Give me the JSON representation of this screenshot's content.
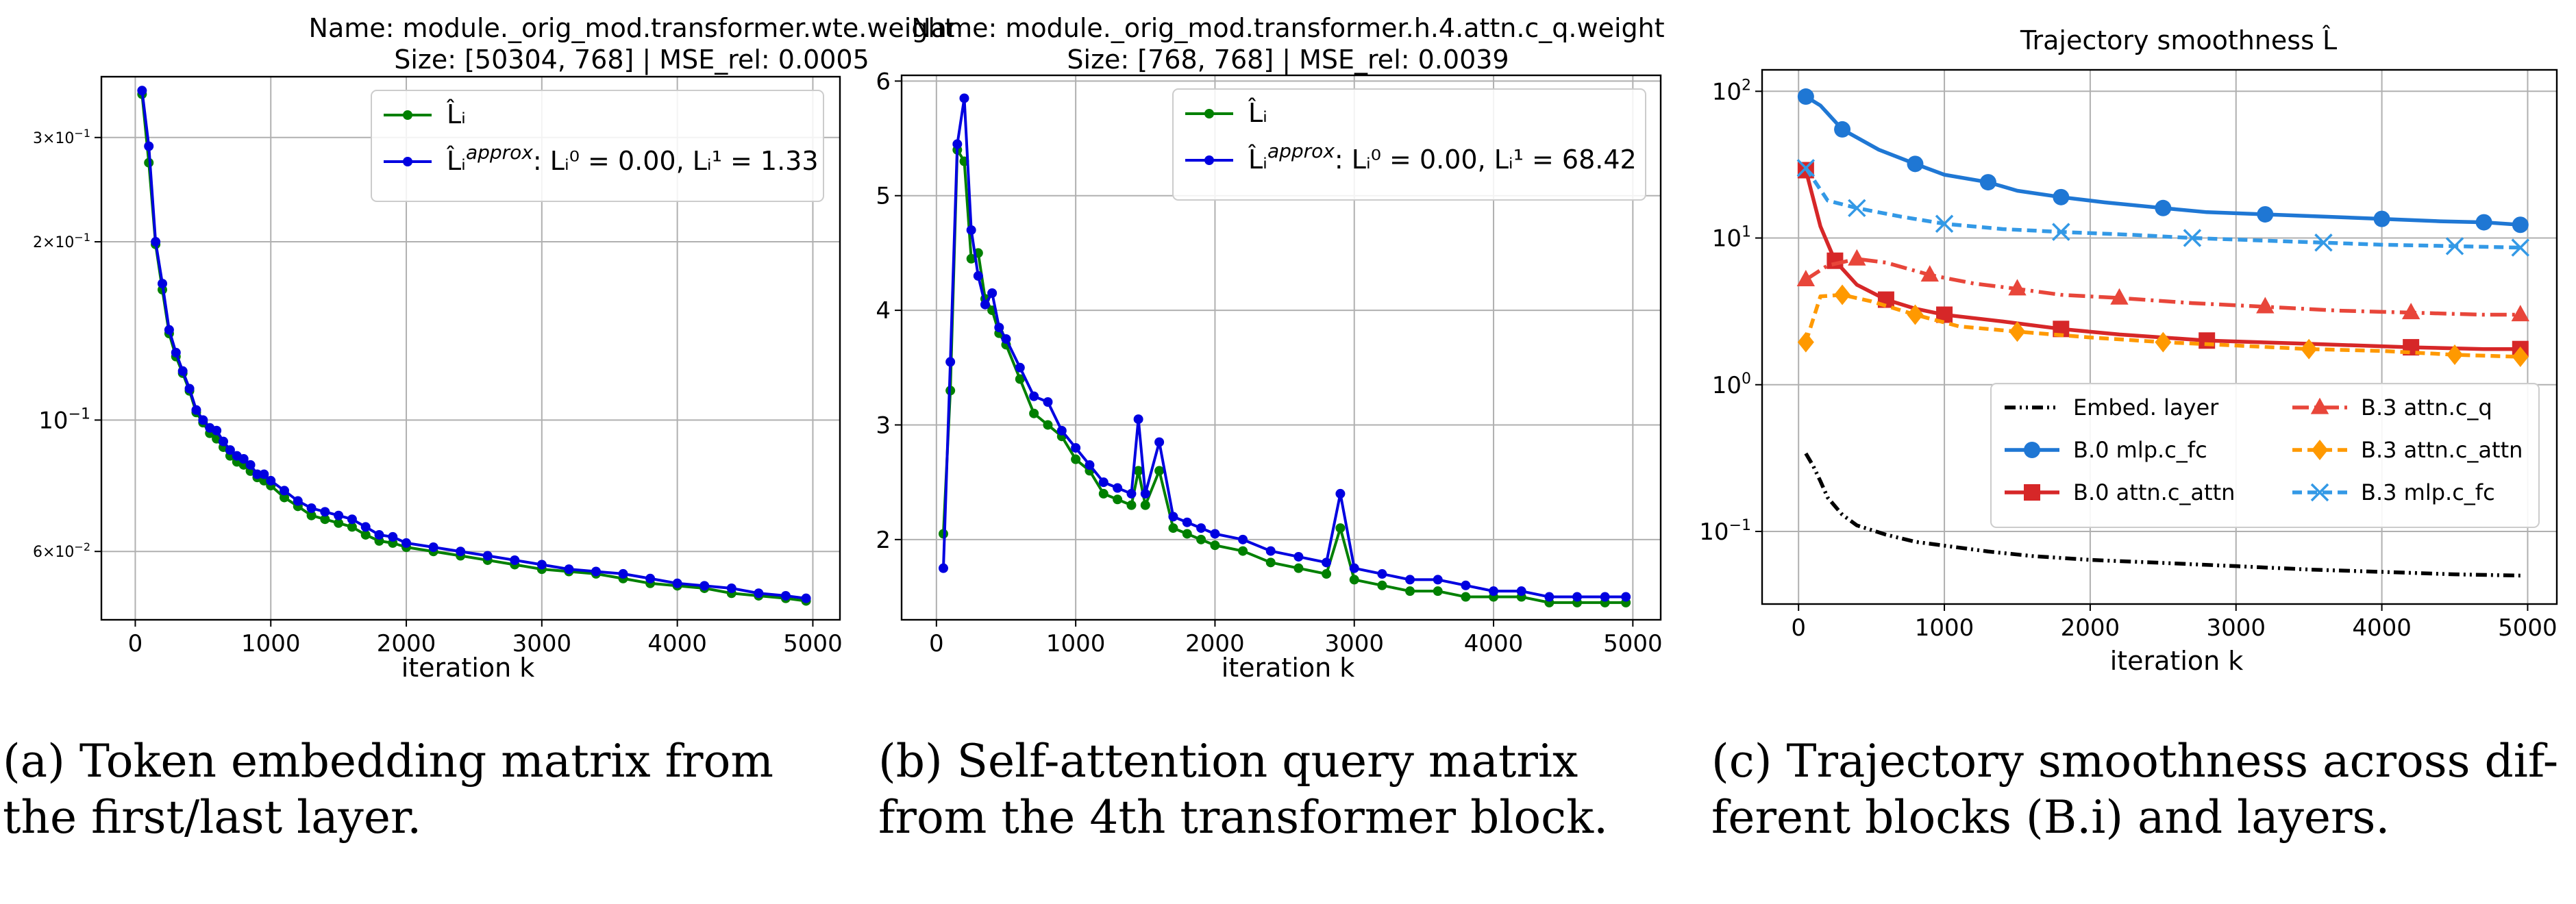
{
  "chart_data": [
    {
      "type": "line",
      "title": "Name: module._orig_mod.transformer.wte.weight",
      "subtitle": "Size: [50304, 768] | MSE_rel: 0.0005",
      "xlabel": "iteration k",
      "ylabel": "",
      "xlim": [
        -250,
        5200
      ],
      "ylim": [
        0.046,
        0.38
      ],
      "yscale": "log",
      "xticks": [
        0,
        1000,
        2000,
        3000,
        4000,
        5000
      ],
      "yticks": [
        {
          "value": 0.3,
          "mant": "3×10",
          "exp": "−1"
        },
        {
          "value": 0.2,
          "mant": "2×10",
          "exp": "−1"
        },
        {
          "value": 0.1,
          "mant": "10",
          "exp": "−1"
        },
        {
          "value": 0.06,
          "mant": "6×10",
          "exp": "−2"
        }
      ],
      "grid": true,
      "legend_position": "top-right",
      "series": [
        {
          "name": "L̂ᵢ",
          "color": "#008000",
          "x": [
            50,
            100,
            150,
            200,
            250,
            300,
            350,
            400,
            450,
            500,
            550,
            600,
            650,
            700,
            750,
            800,
            850,
            900,
            950,
            1000,
            1100,
            1200,
            1300,
            1400,
            1500,
            1600,
            1700,
            1800,
            1900,
            2000,
            2200,
            2400,
            2600,
            2800,
            3000,
            3200,
            3400,
            3600,
            3800,
            4000,
            4200,
            4400,
            4600,
            4800,
            4950
          ],
          "y": [
            0.355,
            0.272,
            0.198,
            0.166,
            0.14,
            0.128,
            0.12,
            0.112,
            0.103,
            0.099,
            0.095,
            0.093,
            0.09,
            0.087,
            0.085,
            0.084,
            0.082,
            0.08,
            0.079,
            0.0775,
            0.074,
            0.0715,
            0.069,
            0.068,
            0.067,
            0.066,
            0.064,
            0.0625,
            0.062,
            0.061,
            0.06,
            0.059,
            0.058,
            0.057,
            0.056,
            0.0555,
            0.055,
            0.054,
            0.053,
            0.0525,
            0.052,
            0.051,
            0.0505,
            0.05,
            0.0495
          ]
        },
        {
          "name": "L̂ᵢ^approx",
          "legend_extra": ": Lᵢ⁰ = 0.00, Lᵢ¹ = 1.33",
          "color": "#0000e0",
          "x": [
            50,
            100,
            150,
            200,
            250,
            300,
            350,
            400,
            450,
            500,
            550,
            600,
            650,
            700,
            750,
            800,
            850,
            900,
            950,
            1000,
            1100,
            1200,
            1300,
            1400,
            1500,
            1600,
            1700,
            1800,
            1900,
            2000,
            2200,
            2400,
            2600,
            2800,
            3000,
            3200,
            3400,
            3600,
            3800,
            4000,
            4200,
            4400,
            4600,
            4800,
            4950
          ],
          "y": [
            0.36,
            0.29,
            0.2,
            0.17,
            0.142,
            0.13,
            0.121,
            0.113,
            0.104,
            0.1,
            0.097,
            0.096,
            0.092,
            0.089,
            0.087,
            0.086,
            0.084,
            0.081,
            0.081,
            0.079,
            0.076,
            0.073,
            0.071,
            0.07,
            0.069,
            0.068,
            0.066,
            0.064,
            0.0635,
            0.062,
            0.061,
            0.06,
            0.059,
            0.058,
            0.057,
            0.056,
            0.0555,
            0.055,
            0.054,
            0.053,
            0.0525,
            0.052,
            0.051,
            0.0505,
            0.05
          ]
        }
      ]
    },
    {
      "type": "line",
      "title": "Name: module._orig_mod.transformer.h.4.attn.c_q.weight",
      "subtitle": "Size: [768, 768] | MSE_rel: 0.0039",
      "xlabel": "iteration k",
      "ylabel": "",
      "xlim": [
        -250,
        5200
      ],
      "ylim": [
        1.3,
        6.05
      ],
      "yscale": "linear",
      "xticks": [
        0,
        1000,
        2000,
        3000,
        4000,
        5000
      ],
      "yticks": [
        2,
        3,
        4,
        5,
        6
      ],
      "grid": true,
      "legend_position": "top-right",
      "series": [
        {
          "name": "L̂ᵢ",
          "color": "#008000",
          "x": [
            50,
            100,
            150,
            200,
            250,
            300,
            350,
            400,
            450,
            500,
            600,
            700,
            800,
            900,
            1000,
            1100,
            1200,
            1300,
            1400,
            1450,
            1500,
            1600,
            1700,
            1800,
            1900,
            2000,
            2200,
            2400,
            2600,
            2800,
            2900,
            3000,
            3200,
            3400,
            3600,
            3800,
            4000,
            4200,
            4400,
            4600,
            4800,
            4950
          ],
          "y": [
            2.05,
            3.3,
            5.4,
            5.3,
            4.45,
            4.5,
            4.1,
            4.0,
            3.8,
            3.7,
            3.4,
            3.1,
            3.0,
            2.9,
            2.7,
            2.6,
            2.4,
            2.35,
            2.3,
            2.6,
            2.3,
            2.6,
            2.1,
            2.05,
            2.0,
            1.95,
            1.9,
            1.8,
            1.75,
            1.7,
            2.1,
            1.65,
            1.6,
            1.55,
            1.55,
            1.5,
            1.5,
            1.5,
            1.45,
            1.45,
            1.45,
            1.45
          ]
        },
        {
          "name": "L̂ᵢ^approx",
          "legend_extra": ": Lᵢ⁰ = 0.00, Lᵢ¹ = 68.42",
          "color": "#0000e0",
          "x": [
            50,
            100,
            150,
            200,
            250,
            300,
            350,
            400,
            450,
            500,
            600,
            700,
            800,
            900,
            1000,
            1100,
            1200,
            1300,
            1400,
            1450,
            1500,
            1600,
            1700,
            1800,
            1900,
            2000,
            2200,
            2400,
            2600,
            2800,
            2900,
            3000,
            3200,
            3400,
            3600,
            3800,
            4000,
            4200,
            4400,
            4600,
            4800,
            4950
          ],
          "y": [
            1.75,
            3.55,
            5.45,
            5.85,
            4.7,
            4.3,
            4.05,
            4.15,
            3.85,
            3.75,
            3.5,
            3.25,
            3.2,
            2.95,
            2.8,
            2.65,
            2.5,
            2.45,
            2.4,
            3.05,
            2.4,
            2.85,
            2.2,
            2.15,
            2.1,
            2.05,
            2.0,
            1.9,
            1.85,
            1.8,
            2.4,
            1.75,
            1.7,
            1.65,
            1.65,
            1.6,
            1.55,
            1.55,
            1.5,
            1.5,
            1.5,
            1.5
          ]
        }
      ]
    },
    {
      "type": "line",
      "title": "Trajectory smoothness L̂",
      "xlabel": "iteration k",
      "ylabel": "",
      "xlim": [
        -250,
        5200
      ],
      "ylim": [
        0.032,
        140
      ],
      "yscale": "log",
      "xticks": [
        0,
        1000,
        2000,
        3000,
        4000,
        5000
      ],
      "yticks": [
        {
          "value": 0.1,
          "mant": "10",
          "exp": "−1"
        },
        {
          "value": 1,
          "mant": "10",
          "exp": "0"
        },
        {
          "value": 10,
          "mant": "10",
          "exp": "1"
        },
        {
          "value": 100,
          "mant": "10",
          "exp": "2"
        }
      ],
      "grid": true,
      "legend_position": "lower-right",
      "series": [
        {
          "name": "Embed. layer",
          "color": "#000000",
          "dash": "16,6,3,6,3,6",
          "marker": "none",
          "x": [
            50,
            100,
            150,
            200,
            300,
            400,
            600,
            800,
            1000,
            1300,
            1600,
            2000,
            2500,
            3000,
            3500,
            4000,
            4500,
            4950
          ],
          "y": [
            0.34,
            0.28,
            0.22,
            0.17,
            0.13,
            0.11,
            0.095,
            0.085,
            0.08,
            0.073,
            0.068,
            0.064,
            0.061,
            0.058,
            0.055,
            0.053,
            0.051,
            0.05
          ]
        },
        {
          "name": "B.0 mlp.c_fc",
          "color": "#1f77d4",
          "dash": "",
          "marker": "circle",
          "x": [
            50,
            150,
            300,
            550,
            800,
            1000,
            1300,
            1500,
            1800,
            2100,
            2500,
            2800,
            3200,
            3600,
            4000,
            4400,
            4700,
            4950
          ],
          "y": [
            92,
            80,
            55,
            40,
            32,
            27,
            24,
            21,
            19,
            17.5,
            16,
            15,
            14.5,
            14,
            13.5,
            13,
            12.8,
            12.3
          ]
        },
        {
          "name": "B.0 attn.c_attn",
          "color": "#d62728",
          "dash": "",
          "marker": "square",
          "x": [
            50,
            150,
            250,
            400,
            600,
            800,
            1000,
            1400,
            1800,
            2200,
            2800,
            3500,
            4200,
            4700,
            4950
          ],
          "y": [
            29,
            12,
            7,
            4.8,
            3.8,
            3.3,
            3.0,
            2.7,
            2.4,
            2.2,
            2.0,
            1.9,
            1.8,
            1.75,
            1.75
          ]
        },
        {
          "name": "B.3 attn.c_q",
          "color": "#e8463a",
          "dash": "24,8,4,8",
          "marker": "triangle",
          "x": [
            50,
            200,
            400,
            600,
            900,
            1200,
            1500,
            1800,
            2200,
            2700,
            3200,
            3700,
            4200,
            4700,
            4950
          ],
          "y": [
            5.2,
            6.5,
            7.2,
            6.8,
            5.6,
            4.9,
            4.5,
            4.1,
            3.9,
            3.6,
            3.4,
            3.2,
            3.1,
            3.0,
            3.0
          ]
        },
        {
          "name": "B.3 attn.c_attn",
          "color": "#ff9900",
          "dash": "14,8",
          "marker": "diamond",
          "x": [
            50,
            150,
            300,
            500,
            800,
            1100,
            1500,
            2000,
            2500,
            3000,
            3500,
            4000,
            4500,
            4950
          ],
          "y": [
            1.95,
            4.0,
            4.1,
            3.7,
            3.0,
            2.5,
            2.3,
            2.1,
            1.95,
            1.85,
            1.75,
            1.7,
            1.6,
            1.55
          ]
        },
        {
          "name": "B.3 mlp.c_fc",
          "color": "#3399e6",
          "dash": "14,8",
          "marker": "x",
          "x": [
            50,
            200,
            400,
            700,
            1000,
            1400,
            1800,
            2300,
            2700,
            3200,
            3600,
            4000,
            4500,
            4950
          ],
          "y": [
            30,
            18,
            16,
            14,
            12.5,
            11.5,
            11,
            10.5,
            10,
            9.6,
            9.3,
            9,
            8.8,
            8.6
          ]
        }
      ]
    }
  ],
  "captions": [
    {
      "line1": "(a) Token embedding matrix from",
      "line2": "the first/last layer."
    },
    {
      "line1": "(b)  Self-attention  query  matrix",
      "line2": "from the 4th transformer block."
    },
    {
      "line1": "(c) Trajectory smoothness across dif-",
      "line2": "ferent blocks (B.i) and layers."
    }
  ]
}
